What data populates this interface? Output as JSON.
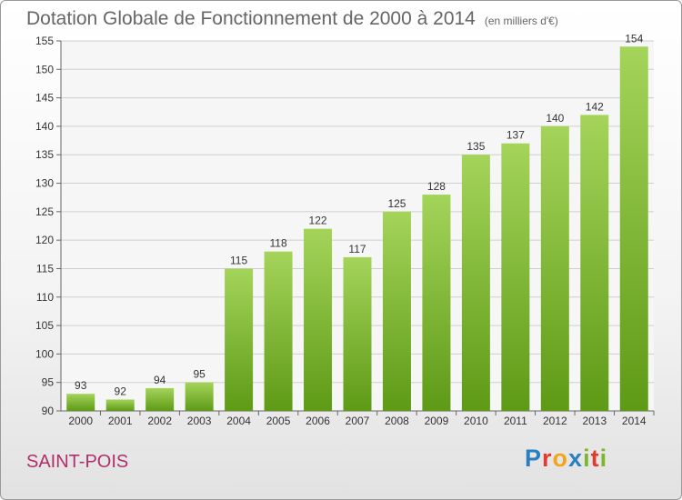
{
  "header": {
    "title": "Dotation Globale de Fonctionnement de 2000 à 2014",
    "subtitle": "(en milliers d'€)"
  },
  "footer": {
    "municipality": "SAINT-POIS",
    "logo_text": "Proxiti",
    "logo_colors": [
      "#2a7fc1",
      "#e23b2e",
      "#f2a51c",
      "#2a7fc1",
      "#7ab829",
      "#e23b2e",
      "#7ab829"
    ]
  },
  "colors": {
    "bar_light": "#a4d45a",
    "bar_dark": "#5e9a16",
    "grid": "#cfcfcf",
    "plot_background": "#f6f6f6"
  },
  "chart_data": {
    "type": "bar",
    "categories": [
      "2000",
      "2001",
      "2002",
      "2003",
      "2004",
      "2005",
      "2006",
      "2007",
      "2008",
      "2009",
      "2010",
      "2011",
      "2012",
      "2013",
      "2014"
    ],
    "values": [
      93,
      92,
      94,
      95,
      115,
      118,
      122,
      117,
      125,
      128,
      135,
      137,
      140,
      142,
      154
    ],
    "title": "Dotation Globale de Fonctionnement de 2000 à 2014",
    "subtitle": "(en milliers d'€)",
    "ylim": [
      90,
      155
    ],
    "yticks": [
      90,
      95,
      100,
      105,
      110,
      115,
      120,
      125,
      130,
      135,
      140,
      145,
      150,
      155
    ],
    "grid": true,
    "data_labels": true
  }
}
